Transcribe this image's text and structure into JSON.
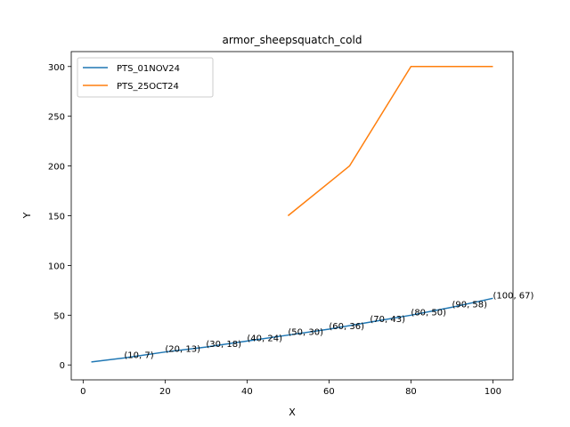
{
  "chart_data": {
    "type": "line",
    "title": "armor_sheepsquatch_cold",
    "xlabel": "X",
    "ylabel": "Y",
    "xlim": [
      -2.9,
      104.9
    ],
    "ylim": [
      -15,
      315
    ],
    "xticks": [
      0,
      20,
      40,
      60,
      80,
      100
    ],
    "yticks": [
      0,
      50,
      100,
      150,
      200,
      250,
      300
    ],
    "grid": false,
    "legend_position": "top-left",
    "series": [
      {
        "name": "PTS_01NOV24",
        "color": "#1f77b4",
        "x": [
          2,
          10,
          20,
          30,
          40,
          50,
          60,
          70,
          80,
          90,
          100
        ],
        "y": [
          3,
          7,
          13,
          18,
          24,
          30,
          36,
          43,
          50,
          58,
          67
        ],
        "labels": [
          {
            "x": 10,
            "y": 7,
            "text": "(10, 7)"
          },
          {
            "x": 20,
            "y": 13,
            "text": "(20, 13)"
          },
          {
            "x": 30,
            "y": 18,
            "text": "(30, 18)"
          },
          {
            "x": 40,
            "y": 24,
            "text": "(40, 24)"
          },
          {
            "x": 50,
            "y": 30,
            "text": "(50, 30)"
          },
          {
            "x": 60,
            "y": 36,
            "text": "(60, 36)"
          },
          {
            "x": 70,
            "y": 43,
            "text": "(70, 43)"
          },
          {
            "x": 80,
            "y": 50,
            "text": "(80, 50)"
          },
          {
            "x": 90,
            "y": 58,
            "text": "(90, 58)"
          },
          {
            "x": 100,
            "y": 67,
            "text": "(100, 67)"
          }
        ]
      },
      {
        "name": "PTS_25OCT24",
        "color": "#ff7f0e",
        "x": [
          50,
          65,
          80,
          100
        ],
        "y": [
          150,
          200,
          300,
          300
        ],
        "labels": []
      }
    ]
  }
}
